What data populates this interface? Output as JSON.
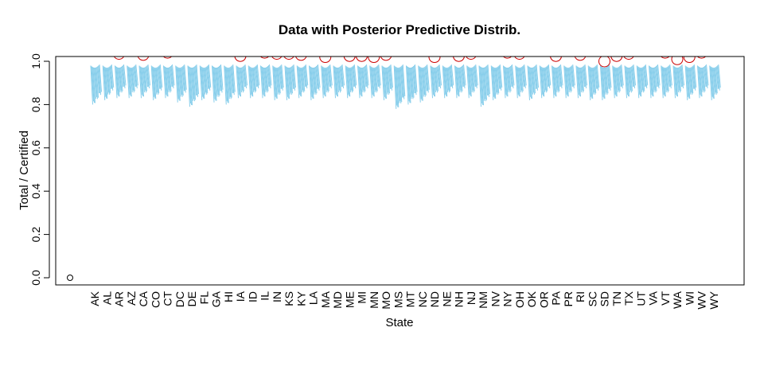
{
  "chart_data": {
    "type": "scatter",
    "title": "Data with Posterior Predictive Distrib.",
    "xlabel": "State",
    "ylabel": "Total / Certified",
    "ylim": [
      0,
      1
    ],
    "yticks": [
      0.0,
      0.2,
      0.4,
      0.6,
      0.8,
      1.0
    ],
    "ytick_labels": [
      "0.0",
      "0.2",
      "0.4",
      "0.6",
      "0.8",
      "1.0"
    ],
    "grid": false,
    "states": [
      "AK",
      "AL",
      "AR",
      "AZ",
      "CA",
      "CO",
      "CT",
      "DC",
      "DE",
      "FL",
      "GA",
      "HI",
      "IA",
      "ID",
      "IL",
      "IN",
      "KS",
      "KY",
      "LA",
      "MA",
      "MD",
      "ME",
      "MI",
      "MN",
      "MO",
      "MS",
      "MT",
      "NC",
      "ND",
      "NE",
      "NH",
      "NJ",
      "NM",
      "NV",
      "NY",
      "OH",
      "OK",
      "OR",
      "PA",
      "PR",
      "RI",
      "SC",
      "SD",
      "TN",
      "TX",
      "UT",
      "VA",
      "VT",
      "WA",
      "WI",
      "WV",
      "WY"
    ],
    "posterior_color": "#87CEEB",
    "observed_color": "#CC0000",
    "posterior_ranges": [
      [
        0.8,
        0.98
      ],
      [
        0.82,
        0.98
      ],
      [
        0.83,
        0.98
      ],
      [
        0.83,
        0.98
      ],
      [
        0.83,
        0.98
      ],
      [
        0.82,
        0.98
      ],
      [
        0.83,
        0.98
      ],
      [
        0.81,
        0.98
      ],
      [
        0.79,
        0.98
      ],
      [
        0.82,
        0.98
      ],
      [
        0.81,
        0.98
      ],
      [
        0.8,
        0.98
      ],
      [
        0.83,
        0.98
      ],
      [
        0.83,
        0.98
      ],
      [
        0.83,
        0.98
      ],
      [
        0.82,
        0.98
      ],
      [
        0.82,
        0.98
      ],
      [
        0.83,
        0.98
      ],
      [
        0.82,
        0.98
      ],
      [
        0.83,
        0.98
      ],
      [
        0.83,
        0.98
      ],
      [
        0.83,
        0.98
      ],
      [
        0.83,
        0.98
      ],
      [
        0.83,
        0.98
      ],
      [
        0.82,
        0.98
      ],
      [
        0.78,
        0.98
      ],
      [
        0.8,
        0.98
      ],
      [
        0.81,
        0.98
      ],
      [
        0.83,
        0.98
      ],
      [
        0.83,
        0.98
      ],
      [
        0.83,
        0.98
      ],
      [
        0.83,
        0.98
      ],
      [
        0.79,
        0.98
      ],
      [
        0.82,
        0.98
      ],
      [
        0.83,
        0.98
      ],
      [
        0.83,
        0.98
      ],
      [
        0.82,
        0.98
      ],
      [
        0.83,
        0.98
      ],
      [
        0.83,
        0.98
      ],
      [
        0.83,
        0.98
      ],
      [
        0.83,
        0.98
      ],
      [
        0.82,
        0.98
      ],
      [
        0.82,
        0.98
      ],
      [
        0.83,
        0.98
      ],
      [
        0.83,
        0.98
      ],
      [
        0.83,
        0.98
      ],
      [
        0.83,
        0.98
      ],
      [
        0.83,
        0.98
      ],
      [
        0.83,
        0.98
      ],
      [
        0.82,
        0.98
      ],
      [
        0.83,
        0.98
      ],
      [
        0.82,
        0.98
      ]
    ],
    "observed_points": [
      {
        "state_index": -1,
        "y": 0.0,
        "color": "#000000",
        "size": "small"
      },
      {
        "state_index": 2,
        "y": 1.035
      },
      {
        "state_index": 4,
        "y": 1.03
      },
      {
        "state_index": 6,
        "y": 1.04
      },
      {
        "state_index": 12,
        "y": 1.025
      },
      {
        "state_index": 14,
        "y": 1.04
      },
      {
        "state_index": 15,
        "y": 1.035
      },
      {
        "state_index": 16,
        "y": 1.035
      },
      {
        "state_index": 17,
        "y": 1.03
      },
      {
        "state_index": 19,
        "y": 1.02
      },
      {
        "state_index": 21,
        "y": 1.025
      },
      {
        "state_index": 22,
        "y": 1.025
      },
      {
        "state_index": 23,
        "y": 1.02
      },
      {
        "state_index": 24,
        "y": 1.03
      },
      {
        "state_index": 28,
        "y": 1.02
      },
      {
        "state_index": 30,
        "y": 1.025
      },
      {
        "state_index": 31,
        "y": 1.035
      },
      {
        "state_index": 34,
        "y": 1.04
      },
      {
        "state_index": 35,
        "y": 1.035
      },
      {
        "state_index": 38,
        "y": 1.025
      },
      {
        "state_index": 40,
        "y": 1.03
      },
      {
        "state_index": 42,
        "y": 1.0
      },
      {
        "state_index": 43,
        "y": 1.025
      },
      {
        "state_index": 44,
        "y": 1.035
      },
      {
        "state_index": 47,
        "y": 1.04
      },
      {
        "state_index": 48,
        "y": 1.01
      },
      {
        "state_index": 49,
        "y": 1.02
      },
      {
        "state_index": 50,
        "y": 1.04
      }
    ]
  }
}
